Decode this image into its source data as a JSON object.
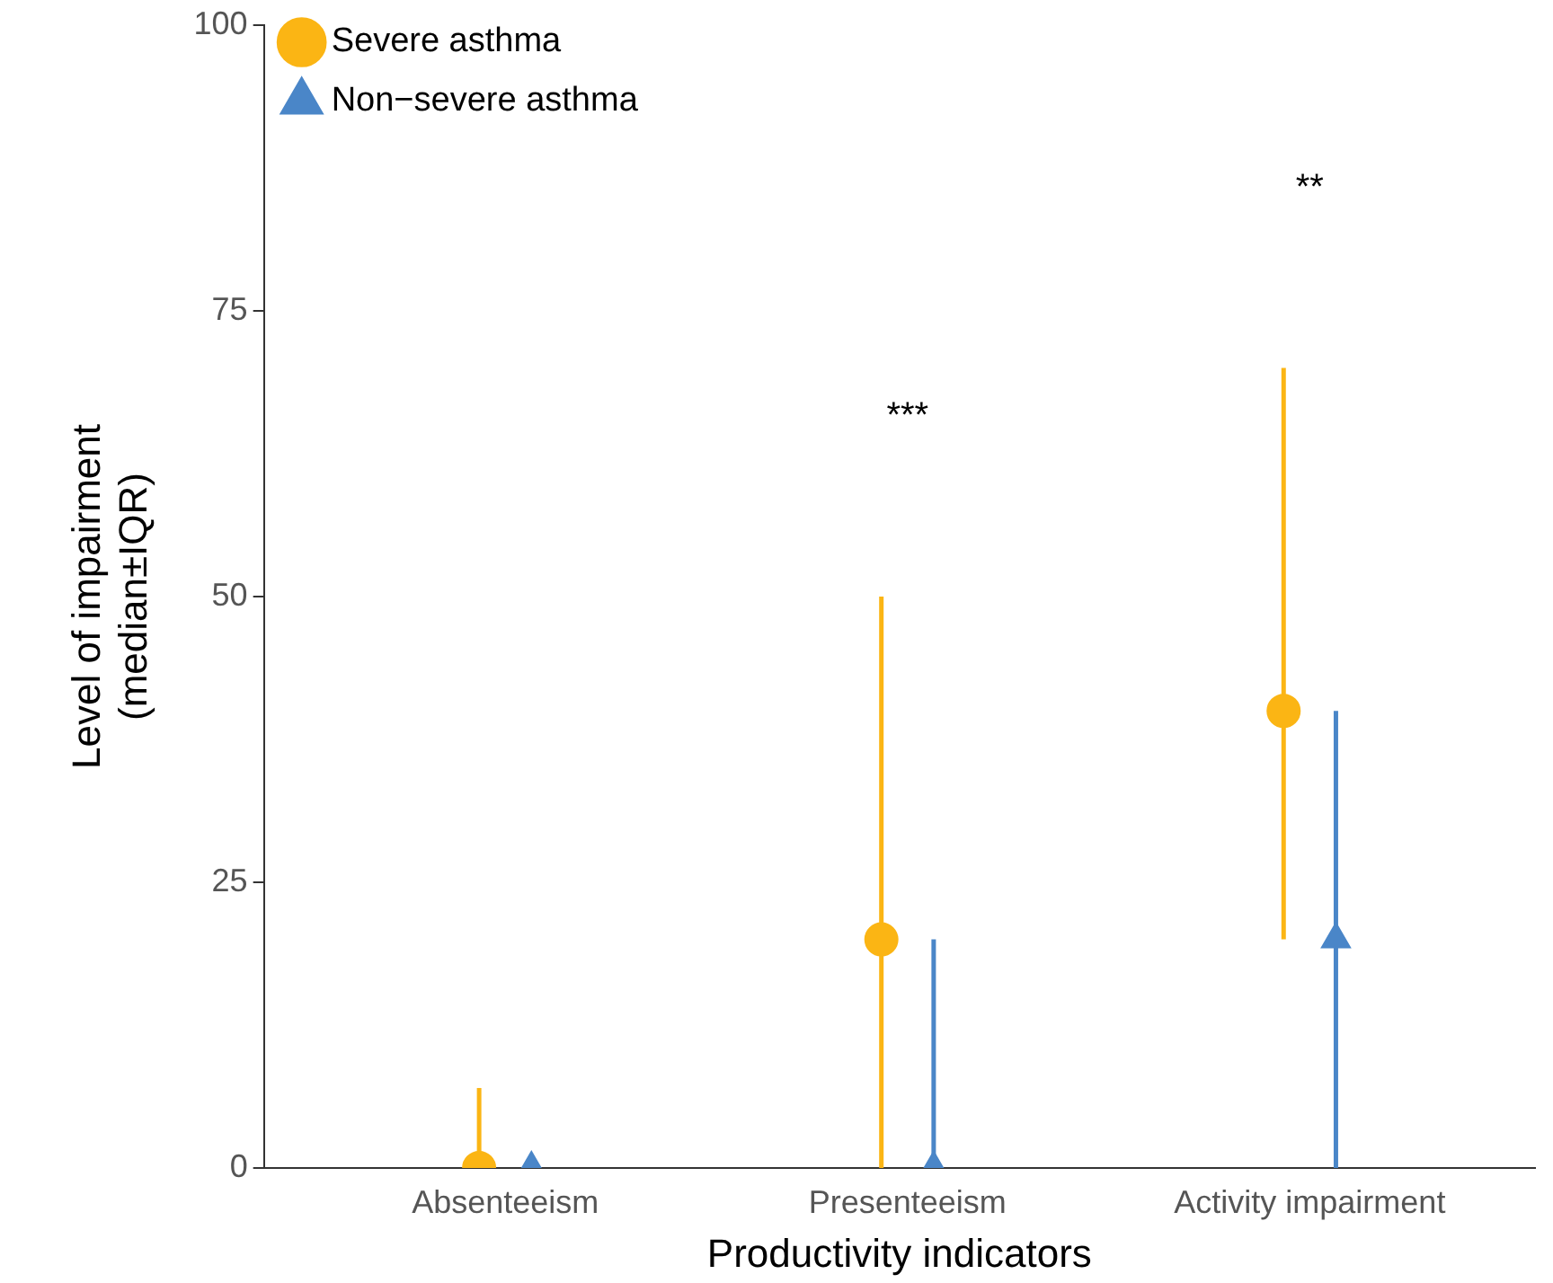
{
  "chart_data": {
    "type": "scatter",
    "xlabel": "Productivity indicators",
    "ylabel": "Level of impairment\n(median±IQR)",
    "categories": [
      "Absenteeism",
      "Presenteeism",
      "Activity impairment"
    ],
    "series": [
      {
        "name": "Severe asthma",
        "color": "#fbb514",
        "marker": "circle",
        "values": [
          0,
          20,
          40
        ],
        "errors": [
          [
            0,
            7
          ],
          [
            0,
            50
          ],
          [
            20,
            70
          ]
        ]
      },
      {
        "name": "Non−severe asthma",
        "color": "#4a86c8",
        "marker": "triangle",
        "values": [
          0,
          0,
          20
        ],
        "errors": [
          null,
          [
            0,
            20
          ],
          [
            0,
            40
          ]
        ]
      }
    ],
    "ylim": [
      0,
      100
    ],
    "yticks": [
      0,
      25,
      50,
      75,
      100
    ],
    "grid": false,
    "legend": "top left",
    "annotations": [
      "***",
      "**"
    ]
  }
}
